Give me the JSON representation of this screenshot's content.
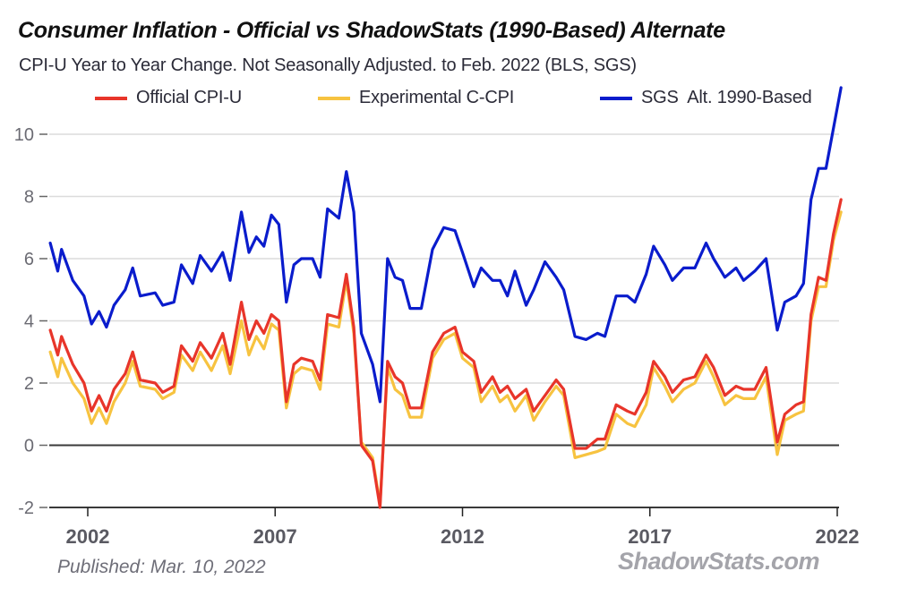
{
  "chart_data": {
    "type": "line",
    "title": "Consumer Inflation - Official vs ShadowStats (1990-Based) Alternate",
    "subtitle": "CPI-U Year to Year Change. Not Seasonally Adjusted. to Feb. 2022  (BLS, SGS)",
    "xlabel": "",
    "ylabel": "",
    "xlim": [
      2001.0,
      2022.1
    ],
    "ylim": [
      -2,
      10
    ],
    "y_ticks": [
      10,
      8,
      6,
      4,
      2,
      0,
      -2
    ],
    "y_tick_labels": [
      "10",
      "8",
      "6",
      "4",
      "2",
      "0",
      "-2"
    ],
    "x_ticks": [
      2002,
      2007,
      2012,
      2017,
      2022
    ],
    "x_tick_labels": [
      "2002",
      "2007",
      "2012",
      "2017",
      "2022"
    ],
    "grid": true,
    "legend_position": "top",
    "zero_line": true,
    "series": [
      {
        "name": "Official CPI-U",
        "color": "#e8352a",
        "x": [
          2001.0,
          2001.2,
          2001.3,
          2001.6,
          2001.9,
          2002.1,
          2002.3,
          2002.5,
          2002.7,
          2003.0,
          2003.2,
          2003.4,
          2003.8,
          2004.0,
          2004.3,
          2004.5,
          2004.8,
          2005.0,
          2005.3,
          2005.6,
          2005.8,
          2006.1,
          2006.3,
          2006.5,
          2006.7,
          2006.9,
          2007.1,
          2007.3,
          2007.5,
          2007.7,
          2008.0,
          2008.2,
          2008.4,
          2008.7,
          2008.9,
          2009.1,
          2009.3,
          2009.6,
          2009.8,
          2010.0,
          2010.2,
          2010.4,
          2010.6,
          2010.9,
          2011.2,
          2011.5,
          2011.8,
          2012.0,
          2012.3,
          2012.5,
          2012.8,
          2013.0,
          2013.2,
          2013.4,
          2013.7,
          2013.9,
          2014.2,
          2014.5,
          2014.7,
          2015.0,
          2015.3,
          2015.6,
          2015.8,
          2016.1,
          2016.4,
          2016.6,
          2016.9,
          2017.1,
          2017.4,
          2017.6,
          2017.9,
          2018.2,
          2018.5,
          2018.7,
          2019.0,
          2019.3,
          2019.5,
          2019.8,
          2020.1,
          2020.4,
          2020.6,
          2020.9,
          2021.1,
          2021.3,
          2021.5,
          2021.7,
          2021.9,
          2022.1
        ],
        "values": [
          3.7,
          2.9,
          3.5,
          2.6,
          2.0,
          1.1,
          1.6,
          1.1,
          1.8,
          2.3,
          3.0,
          2.1,
          2.0,
          1.7,
          1.9,
          3.2,
          2.7,
          3.3,
          2.8,
          3.6,
          2.6,
          4.6,
          3.4,
          4.0,
          3.6,
          4.2,
          4.0,
          1.4,
          2.6,
          2.8,
          2.7,
          2.1,
          4.2,
          4.1,
          5.5,
          3.8,
          0.0,
          -0.5,
          -2.0,
          2.7,
          2.2,
          2.0,
          1.2,
          1.2,
          3.0,
          3.6,
          3.8,
          3.0,
          2.7,
          1.7,
          2.2,
          1.7,
          1.9,
          1.5,
          1.8,
          1.1,
          1.6,
          2.1,
          1.8,
          -0.1,
          -0.1,
          0.2,
          0.2,
          1.3,
          1.1,
          1.0,
          1.7,
          2.7,
          2.2,
          1.7,
          2.1,
          2.2,
          2.9,
          2.5,
          1.6,
          1.9,
          1.8,
          1.8,
          2.5,
          0.1,
          1.0,
          1.3,
          1.4,
          4.2,
          5.4,
          5.3,
          6.8,
          7.9
        ]
      },
      {
        "name": "Experimental C-CPI",
        "color": "#f7c340",
        "x": [
          2001.0,
          2001.2,
          2001.3,
          2001.6,
          2001.9,
          2002.1,
          2002.3,
          2002.5,
          2002.7,
          2003.0,
          2003.2,
          2003.4,
          2003.8,
          2004.0,
          2004.3,
          2004.5,
          2004.8,
          2005.0,
          2005.3,
          2005.6,
          2005.8,
          2006.1,
          2006.3,
          2006.5,
          2006.7,
          2006.9,
          2007.1,
          2007.3,
          2007.5,
          2007.7,
          2008.0,
          2008.2,
          2008.4,
          2008.7,
          2008.9,
          2009.1,
          2009.3,
          2009.6,
          2009.8,
          2010.0,
          2010.2,
          2010.4,
          2010.6,
          2010.9,
          2011.2,
          2011.5,
          2011.8,
          2012.0,
          2012.3,
          2012.5,
          2012.8,
          2013.0,
          2013.2,
          2013.4,
          2013.7,
          2013.9,
          2014.2,
          2014.5,
          2014.7,
          2015.0,
          2015.3,
          2015.6,
          2015.8,
          2016.1,
          2016.4,
          2016.6,
          2016.9,
          2017.1,
          2017.4,
          2017.6,
          2017.9,
          2018.2,
          2018.5,
          2018.7,
          2019.0,
          2019.3,
          2019.5,
          2019.8,
          2020.1,
          2020.4,
          2020.6,
          2020.9,
          2021.1,
          2021.3,
          2021.5,
          2021.7,
          2021.9,
          2022.1
        ],
        "values": [
          3.0,
          2.2,
          2.8,
          2.0,
          1.5,
          0.7,
          1.2,
          0.7,
          1.4,
          2.0,
          2.7,
          1.9,
          1.8,
          1.5,
          1.7,
          2.9,
          2.4,
          3.0,
          2.4,
          3.2,
          2.3,
          4.0,
          2.9,
          3.5,
          3.1,
          3.9,
          3.7,
          1.2,
          2.3,
          2.5,
          2.4,
          1.8,
          3.9,
          3.8,
          5.3,
          3.6,
          0.1,
          -0.4,
          -1.9,
          2.5,
          1.8,
          1.6,
          0.9,
          0.9,
          2.8,
          3.4,
          3.6,
          2.8,
          2.5,
          1.4,
          1.9,
          1.4,
          1.6,
          1.1,
          1.6,
          0.8,
          1.4,
          1.9,
          1.6,
          -0.4,
          -0.3,
          -0.2,
          -0.1,
          1.0,
          0.7,
          0.6,
          1.3,
          2.5,
          1.9,
          1.4,
          1.8,
          2.0,
          2.7,
          2.2,
          1.3,
          1.6,
          1.5,
          1.5,
          2.2,
          -0.3,
          0.8,
          1.0,
          1.1,
          4.0,
          5.1,
          5.1,
          6.6,
          7.5
        ]
      },
      {
        "name": "SGS  Alt. 1990-Based",
        "color": "#0a1ccc",
        "x": [
          2001.0,
          2001.2,
          2001.3,
          2001.6,
          2001.9,
          2002.1,
          2002.3,
          2002.5,
          2002.7,
          2003.0,
          2003.2,
          2003.4,
          2003.8,
          2004.0,
          2004.3,
          2004.5,
          2004.8,
          2005.0,
          2005.3,
          2005.6,
          2005.8,
          2006.1,
          2006.3,
          2006.5,
          2006.7,
          2006.9,
          2007.1,
          2007.3,
          2007.5,
          2007.7,
          2008.0,
          2008.2,
          2008.4,
          2008.7,
          2008.9,
          2009.1,
          2009.3,
          2009.6,
          2009.8,
          2010.0,
          2010.2,
          2010.4,
          2010.6,
          2010.9,
          2011.2,
          2011.5,
          2011.8,
          2012.0,
          2012.3,
          2012.5,
          2012.8,
          2013.0,
          2013.2,
          2013.4,
          2013.7,
          2013.9,
          2014.2,
          2014.5,
          2014.7,
          2015.0,
          2015.3,
          2015.6,
          2015.8,
          2016.1,
          2016.4,
          2016.6,
          2016.9,
          2017.1,
          2017.4,
          2017.6,
          2017.9,
          2018.2,
          2018.5,
          2018.7,
          2019.0,
          2019.3,
          2019.5,
          2019.8,
          2020.1,
          2020.4,
          2020.6,
          2020.9,
          2021.1,
          2021.3,
          2021.5,
          2021.7,
          2021.9,
          2022.1
        ],
        "values": [
          6.5,
          5.6,
          6.3,
          5.3,
          4.8,
          3.9,
          4.3,
          3.8,
          4.5,
          5.0,
          5.7,
          4.8,
          4.9,
          4.5,
          4.6,
          5.8,
          5.2,
          6.1,
          5.6,
          6.2,
          5.3,
          7.5,
          6.2,
          6.7,
          6.4,
          7.4,
          7.1,
          4.6,
          5.8,
          6.0,
          6.0,
          5.4,
          7.6,
          7.3,
          8.8,
          7.5,
          3.6,
          2.6,
          1.4,
          6.0,
          5.4,
          5.3,
          4.4,
          4.4,
          6.3,
          7.0,
          6.9,
          6.2,
          5.1,
          5.7,
          5.3,
          5.3,
          4.8,
          5.6,
          4.5,
          5.0,
          5.9,
          5.4,
          5.0,
          3.5,
          3.4,
          3.6,
          3.5,
          4.8,
          4.8,
          4.6,
          5.5,
          6.4,
          5.8,
          5.3,
          5.7,
          5.7,
          6.5,
          6.0,
          5.4,
          5.7,
          5.3,
          5.6,
          6.0,
          3.7,
          4.6,
          4.8,
          5.2,
          7.9,
          8.9,
          8.9,
          10.2,
          11.5
        ]
      }
    ]
  },
  "footer": {
    "published": "Published: Mar. 10, 2022",
    "brand": "ShadowStats.com"
  }
}
